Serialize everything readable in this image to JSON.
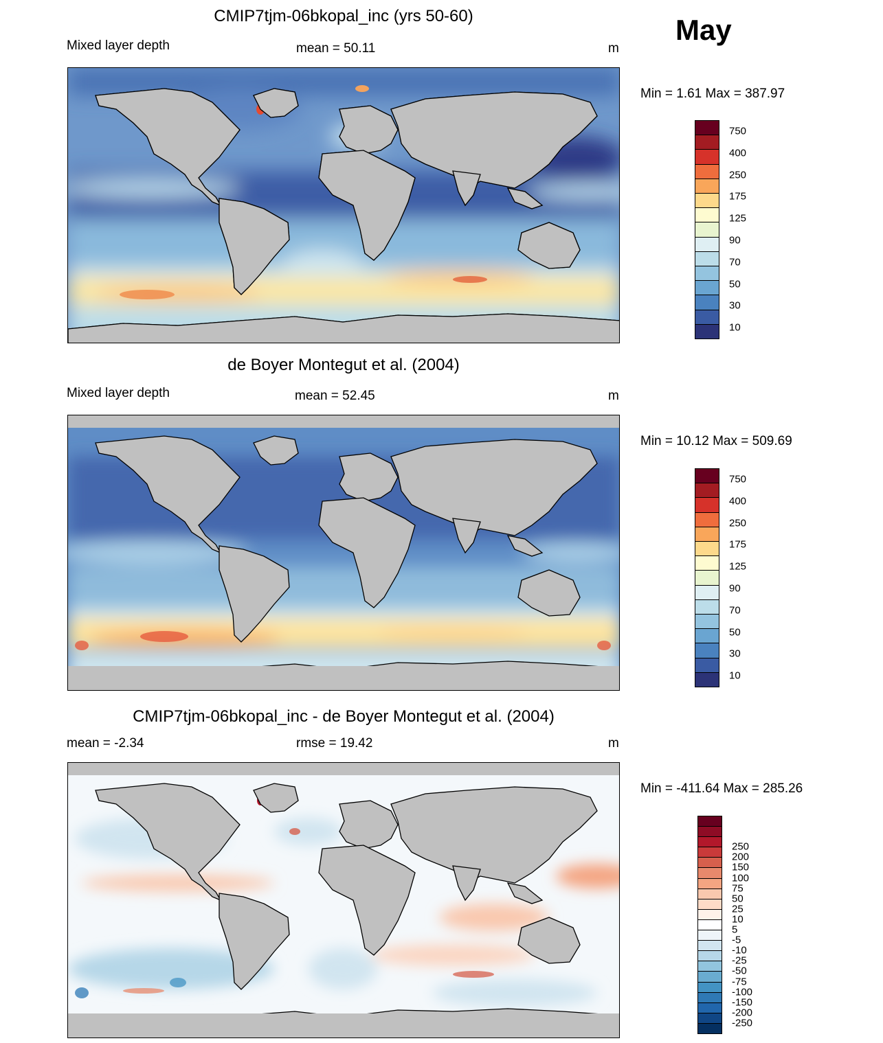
{
  "month": "May",
  "panels": [
    {
      "id": "model",
      "title": "CMIP7tjm-06bkopal_inc (yrs 50-60)",
      "left_label": "Mixed layer depth",
      "center_label": "mean =  50.11",
      "unit": "m",
      "minmax": "Min =   1.61 Max = 387.97",
      "colorbar_labels": [
        "750",
        "400",
        "250",
        "175",
        "125",
        "90",
        "70",
        "50",
        "30",
        "10"
      ],
      "colorbar_colors": [
        "#67001f",
        "#a31c22",
        "#d6322a",
        "#ef6d3d",
        "#f9a65a",
        "#fdd98b",
        "#fefbd0",
        "#e8f4cf",
        "#dfeff3",
        "#bcdde9",
        "#94c4df",
        "#6aa5d1",
        "#4a82bf",
        "#3a5ba3",
        "#2c3377"
      ]
    },
    {
      "id": "obs",
      "title": "de Boyer Montegut et al. (2004)",
      "left_label": "Mixed layer depth",
      "center_label": "mean =  52.45",
      "unit": "m",
      "minmax": "Min =  10.12 Max = 509.69",
      "colorbar_labels": [
        "750",
        "400",
        "250",
        "175",
        "125",
        "90",
        "70",
        "50",
        "30",
        "10"
      ],
      "colorbar_colors": [
        "#67001f",
        "#a31c22",
        "#d6322a",
        "#ef6d3d",
        "#f9a65a",
        "#fdd98b",
        "#fefbd0",
        "#e8f4cf",
        "#dfeff3",
        "#bcdde9",
        "#94c4df",
        "#6aa5d1",
        "#4a82bf",
        "#3a5ba3",
        "#2c3377"
      ]
    },
    {
      "id": "diff",
      "title": "CMIP7tjm-06bkopal_inc - de Boyer Montegut et al. (2004)",
      "left_label": "mean =  -2.34",
      "center_label": "rmse =  19.42",
      "unit": "m",
      "minmax": "Min = -411.64 Max = 285.26",
      "colorbar_labels": [
        "250",
        "200",
        "150",
        "100",
        "75",
        "50",
        "25",
        "10",
        "5",
        "-5",
        "-10",
        "-25",
        "-50",
        "-75",
        "-100",
        "-150",
        "-200",
        "-250"
      ],
      "colorbar_colors": [
        "#67001f",
        "#8e0c25",
        "#b2182b",
        "#c93a3a",
        "#d6604d",
        "#e8896c",
        "#f4a582",
        "#f9c8ae",
        "#fddbc7",
        "#fff2ea",
        "#ffffff",
        "#eef5fa",
        "#d1e5f0",
        "#b6d7e8",
        "#92c5de",
        "#6aacd0",
        "#4393c3",
        "#2f79b5",
        "#2166ac",
        "#104685",
        "#053061"
      ]
    }
  ]
}
